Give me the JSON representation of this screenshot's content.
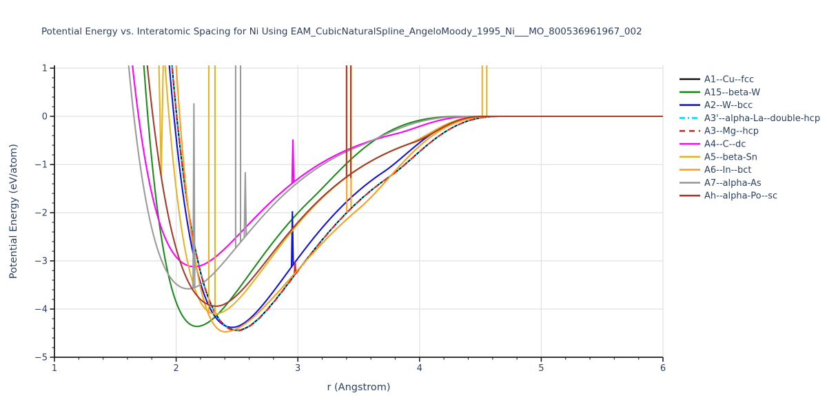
{
  "title": "Potential Energy vs. Interatomic Spacing for Ni Using EAM_CubicNaturalSpline_AngeloMoody_1995_Ni___MO_800536961967_002",
  "colors": {
    "text": "#2a3f5f",
    "grid": "#e0e0e0",
    "spine": "#1c1c1c",
    "background": "#ffffff"
  },
  "chart_data": {
    "type": "line",
    "title": "Potential Energy vs. Interatomic Spacing for Ni Using EAM_CubicNaturalSpline_AngeloMoody_1995_Ni___MO_800536961967_002",
    "xlabel": "r (Angstrom)",
    "ylabel": "Potential Energy (eV/atom)",
    "xlim": [
      1,
      6
    ],
    "ylim": [
      -5,
      1
    ],
    "x_major_ticks": [
      1,
      2,
      3,
      4,
      5,
      6
    ],
    "y_major_ticks": [
      1,
      0,
      -1,
      -2,
      -3,
      -4,
      -5
    ],
    "minor_tick_step": 0.2,
    "grid": true,
    "legend_position": "right-outside",
    "clip_top_E": 1.06,
    "series": [
      {
        "name": "A1--Cu--fcc",
        "color": "#111111",
        "line_style": "solid",
        "legend_dash": null,
        "line_dash": null,
        "dash_offset": 0,
        "minimum": {
          "r": 2.5,
          "E": -4.44
        },
        "zero_at_r": 4.66,
        "model": {
          "r0": 2.5,
          "depth": 4.44,
          "a_in": 1.4,
          "a_out": 1.5,
          "taper": [
            3.75,
            4.66
          ]
        },
        "spikes": []
      },
      {
        "name": "A15--beta-W",
        "color": "#1b8c1b",
        "line_style": "solid",
        "legend_dash": null,
        "line_dash": null,
        "dash_offset": 0,
        "minimum": {
          "r": 2.17,
          "E": -4.36
        },
        "zero_at_r": 4.35,
        "model": {
          "r0": 2.17,
          "depth": 4.36,
          "a_in": 1.72,
          "a_out": 1.6,
          "taper": [
            3.1,
            4.35
          ]
        },
        "spikes": []
      },
      {
        "name": "A2--W--bcc",
        "color": "#1212dd",
        "line_style": "solid",
        "legend_dash": null,
        "line_dash": null,
        "dash_offset": 0,
        "minimum": {
          "r": 2.46,
          "E": -4.38
        },
        "zero_at_r": 4.57,
        "model": {
          "r0": 2.46,
          "depth": 4.38,
          "a_in": 1.45,
          "a_out": 1.57,
          "taper": [
            3.7,
            4.57
          ]
        },
        "spikes": [
          {
            "shape": "peak",
            "r1": 2.948,
            "rp": 2.955,
            "r2": 2.962,
            "top": -1.97
          }
        ]
      },
      {
        "name": "A3'--alpha-La--double-hcp",
        "color": "#00dcf0",
        "line_style": "dashdot",
        "legend_dash": "8 4 2 4",
        "line_dash": "2 4 7 4",
        "dash_offset": 0,
        "minimum": {
          "r": 2.5,
          "E": -4.45
        },
        "zero_at_r": 4.66,
        "model": {
          "r0": 2.5,
          "depth": 4.445,
          "a_in": 1.4,
          "a_out": 1.5,
          "taper": [
            3.75,
            4.66
          ]
        },
        "spikes": []
      },
      {
        "name": "A3--Mg--hcp",
        "color": "#e62222",
        "line_style": "dashed",
        "legend_dash": "8 6",
        "line_dash": "7 10",
        "dash_offset": 8.5,
        "minimum": {
          "r": 2.5,
          "E": -4.45
        },
        "zero_at_r": 4.66,
        "model": {
          "r0": 2.5,
          "depth": 4.45,
          "a_in": 1.4,
          "a_out": 1.5,
          "taper": [
            3.75,
            4.66
          ]
        },
        "spikes": [
          {
            "shape": "peak",
            "r1": 2.97,
            "rp": 2.977,
            "r2": 2.984,
            "top": -3.02
          }
        ]
      },
      {
        "name": "A4--C--dc",
        "color": "#ff00ff",
        "line_style": "solid",
        "legend_dash": null,
        "line_dash": null,
        "dash_offset": 0,
        "minimum": {
          "r": 2.15,
          "E": -3.12
        },
        "zero_at_r": 4.46,
        "model": {
          "r0": 2.15,
          "depth": 3.12,
          "a_in": 1.51,
          "a_out": 1.7,
          "taper": [
            3.8,
            4.46
          ]
        },
        "spikes": [
          {
            "shape": "peak",
            "r1": 2.952,
            "rp": 2.959,
            "r2": 2.966,
            "top": -0.48
          }
        ]
      },
      {
        "name": "A5--beta-Sn",
        "color": "#e6b422",
        "line_style": "solid",
        "legend_dash": null,
        "line_dash": null,
        "dash_offset": 0,
        "minimum": {
          "r": 2.32,
          "E": -4.1
        },
        "zero_at_r": 4.52,
        "model": {
          "r0": 2.32,
          "depth": 4.1,
          "a_in": 1.83,
          "a_out": 1.65,
          "taper": [
            3.9,
            4.52
          ]
        },
        "spikes": [
          {
            "shape": "v",
            "r1": 1.858,
            "rp": 1.877,
            "r2": 1.894,
            "bottom": -1.22,
            "ends": 1.15
          },
          {
            "shape": "line",
            "r": 2.268,
            "from": "curve",
            "to": 1.15
          },
          {
            "shape": "line",
            "r": 2.319,
            "from": "curve",
            "to": 1.15
          },
          {
            "shape": "line",
            "r": 4.515,
            "from": -0.02,
            "to": 1.15
          },
          {
            "shape": "line",
            "r": 4.552,
            "from": -0.02,
            "to": 1.15
          }
        ]
      },
      {
        "name": "A6--In--bct",
        "color": "#ff9d1c",
        "line_style": "solid",
        "legend_dash": null,
        "line_dash": null,
        "dash_offset": 0,
        "minimum": {
          "r": 2.4,
          "E": -4.47
        },
        "zero_at_r": 4.6,
        "model": {
          "r0": 2.4,
          "depth": 4.47,
          "a_in": 1.87,
          "a_out": 1.28,
          "taper": [
            3.5,
            4.6
          ]
        },
        "spikes": [
          {
            "shape": "line",
            "r": 3.402,
            "from": -2.0,
            "to": 1.15
          },
          {
            "shape": "line",
            "r": 3.437,
            "from": -1.88,
            "to": 1.15
          }
        ]
      },
      {
        "name": "A7--alpha-As",
        "color": "#9a9a9a",
        "line_style": "solid",
        "legend_dash": null,
        "line_dash": null,
        "dash_offset": 0,
        "minimum": {
          "r": 2.1,
          "E": -3.58
        },
        "zero_at_r": 4.4,
        "model": {
          "r0": 2.1,
          "depth": 3.58,
          "a_in": 1.55,
          "a_out": 1.71,
          "taper": [
            3.5,
            4.4
          ]
        },
        "spikes": [
          {
            "shape": "peak",
            "r1": 2.139,
            "rp": 2.146,
            "r2": 2.153,
            "top": 0.27
          },
          {
            "shape": "line",
            "r": 2.489,
            "from": "curve",
            "to": 1.15
          },
          {
            "shape": "line",
            "r": 2.529,
            "from": "curve",
            "to": 1.15
          },
          {
            "shape": "peak",
            "r1": 2.56,
            "rp": 2.568,
            "r2": 2.576,
            "top": -1.16
          }
        ]
      },
      {
        "name": "Ah--alpha-Po--sc",
        "color": "#a53a28",
        "line_style": "solid",
        "legend_dash": null,
        "line_dash": null,
        "dash_offset": 0,
        "minimum": {
          "r": 2.33,
          "E": -3.94
        },
        "zero_at_r": 4.52,
        "model": {
          "r0": 2.33,
          "depth": 3.94,
          "a_in": 1.33,
          "a_out": 1.63,
          "taper": [
            3.95,
            4.52
          ]
        },
        "spikes": [
          {
            "shape": "line",
            "r": 3.4,
            "from": -1.28,
            "to": 1.15
          },
          {
            "shape": "line",
            "r": 3.435,
            "from": -1.28,
            "to": 1.15
          }
        ]
      }
    ]
  },
  "legend": {
    "items": [
      "A1--Cu--fcc",
      "A15--beta-W",
      "A2--W--bcc",
      "A3'--alpha-La--double-hcp",
      "A3--Mg--hcp",
      "A4--C--dc",
      "A5--beta-Sn",
      "A6--In--bct",
      "A7--alpha-As",
      "Ah--alpha-Po--sc"
    ]
  }
}
